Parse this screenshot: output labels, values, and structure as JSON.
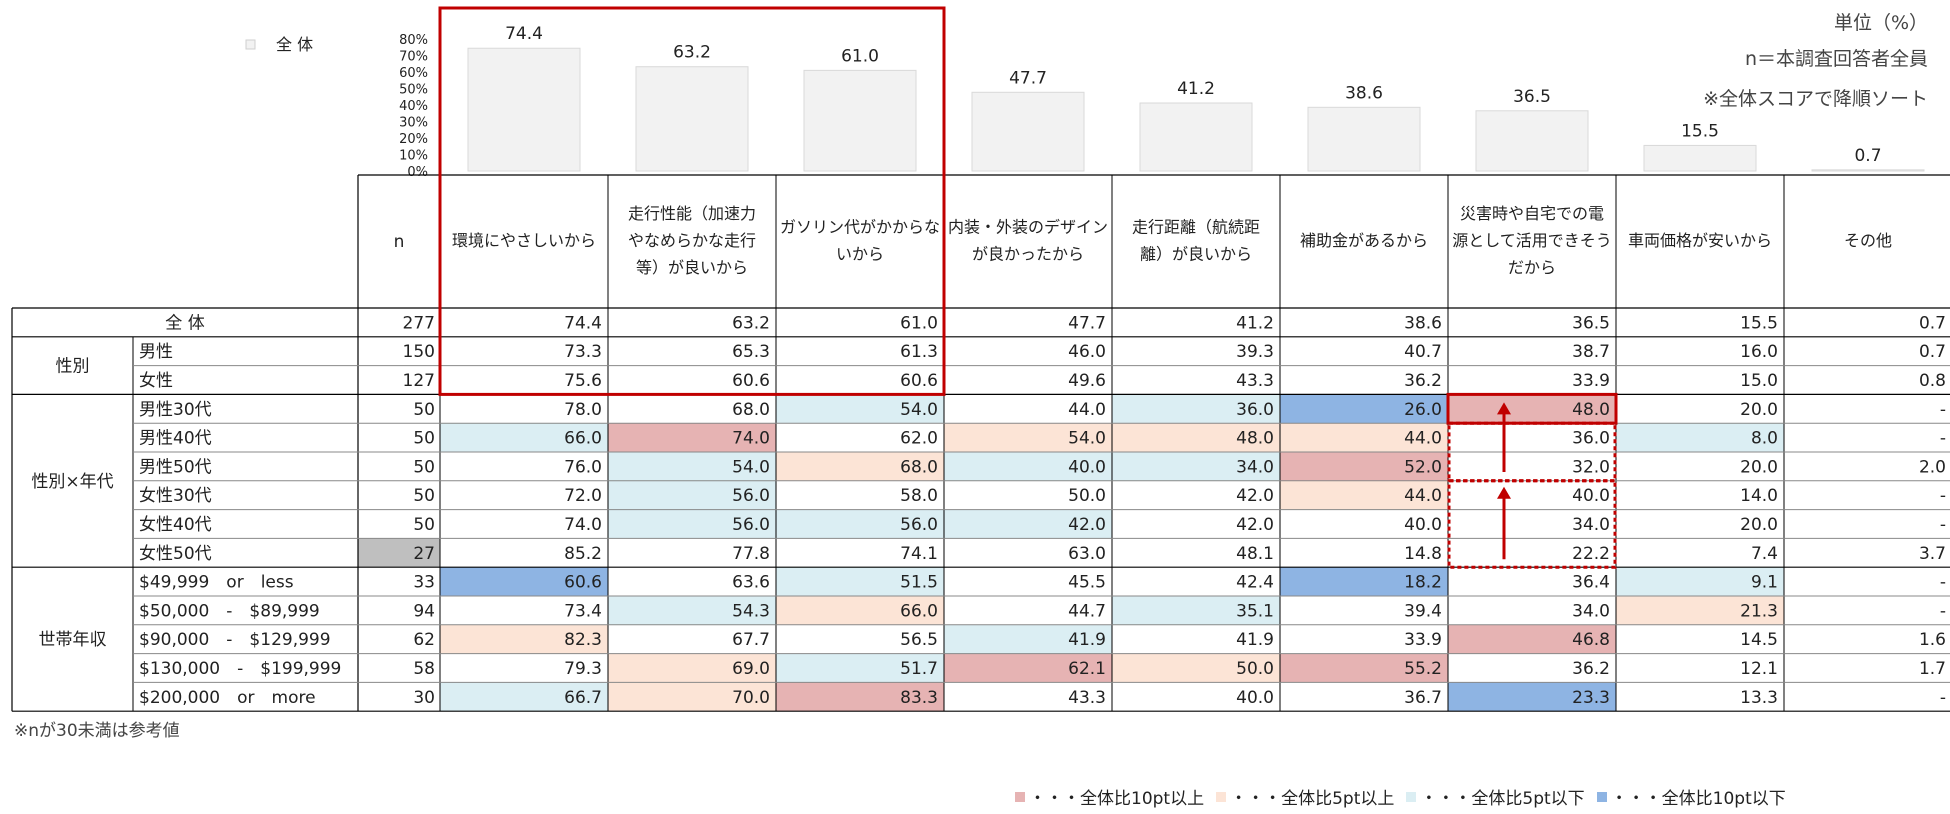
{
  "notes": {
    "unit": "単位（%）",
    "base": "n＝本調査回答者全員",
    "sort": "※全体スコアで降順ソート",
    "small_n": "※nが30未満は参考値"
  },
  "legend": {
    "chart_series": "全 体",
    "items": [
      {
        "color": "#e6b3b3",
        "label": "・・・全体比10pt以上"
      },
      {
        "color": "#fce4d6",
        "label": "・・・全体比5pt以上"
      },
      {
        "color": "#dbeef3",
        "label": "・・・全体比5pt以下"
      },
      {
        "color": "#8eb4e3",
        "label": "・・・全体比10pt以下"
      }
    ]
  },
  "colors": {
    "high10": "#e6b3b3",
    "high5": "#fce4d6",
    "low5": "#dbeef3",
    "low10": "#8eb4e3",
    "smallN": "#bfbfbf",
    "bar": "#f2f2f2",
    "frame": "#c00000"
  },
  "chart_data": {
    "type": "bar",
    "series_name": "全 体",
    "categories": [
      "環境にやさしいから",
      "走行性能（加速力やなめらかな走行等）が良いから",
      "ガソリン代がかからないから",
      "内装・外装のデザインが良かったから",
      "走行距離（航続距離）が良いから",
      "補助金があるから",
      "災害時や自宅での電源として活用できそうだから",
      "車両価格が安いから",
      "その他"
    ],
    "values": [
      74.4,
      63.2,
      61.0,
      47.7,
      41.2,
      38.6,
      36.5,
      15.5,
      0.7
    ],
    "value_labels": [
      "74.4",
      "63.2",
      "61.0",
      "47.7",
      "41.2",
      "38.6",
      "36.5",
      "15.5",
      "0.7"
    ],
    "yticks": [
      "80%",
      "70%",
      "60%",
      "50%",
      "40%",
      "30%",
      "20%",
      "10%",
      "0%"
    ],
    "ylim": [
      0,
      80
    ]
  },
  "table": {
    "n_header": "n",
    "column_headers": [
      [
        "環境にやさしいから"
      ],
      [
        "走行性能（加速力",
        "やなめらかな走行",
        "等）が良いから"
      ],
      [
        "ガソリン代がかからな",
        "いから"
      ],
      [
        "内装・外装のデザイン",
        "が良かったから"
      ],
      [
        "走行距離（航続距",
        "離）が良いから"
      ],
      [
        "補助金があるから"
      ],
      [
        "災害時や自宅での電",
        "源として活用できそう",
        "だから"
      ],
      [
        "車両価格が安いから"
      ],
      [
        "その他"
      ]
    ],
    "groups": [
      {
        "label": "",
        "start": 0,
        "count": 1
      },
      {
        "label": "性別",
        "start": 1,
        "count": 2
      },
      {
        "label": "性別×年代",
        "start": 3,
        "count": 6
      },
      {
        "label": "世帯年収",
        "start": 9,
        "count": 5
      }
    ],
    "rows": [
      {
        "label": "全 体",
        "n": "277",
        "values": [
          "74.4",
          "63.2",
          "61.0",
          "47.7",
          "41.2",
          "38.6",
          "36.5",
          "15.5",
          "0.7"
        ],
        "shade": [
          "",
          "",
          "",
          "",
          "",
          "",
          "",
          "",
          ""
        ]
      },
      {
        "label": "男性",
        "n": "150",
        "values": [
          "73.3",
          "65.3",
          "61.3",
          "46.0",
          "39.3",
          "40.7",
          "38.7",
          "16.0",
          "0.7"
        ],
        "shade": [
          "",
          "",
          "",
          "",
          "",
          "",
          "",
          "",
          ""
        ]
      },
      {
        "label": "女性",
        "n": "127",
        "values": [
          "75.6",
          "60.6",
          "60.6",
          "49.6",
          "43.3",
          "36.2",
          "33.9",
          "15.0",
          "0.8"
        ],
        "shade": [
          "",
          "",
          "",
          "",
          "",
          "",
          "",
          "",
          ""
        ]
      },
      {
        "label": "男性30代",
        "n": "50",
        "values": [
          "78.0",
          "68.0",
          "54.0",
          "44.0",
          "36.0",
          "26.0",
          "48.0",
          "20.0",
          "-"
        ],
        "shade": [
          "",
          "",
          "low5",
          "",
          "low5",
          "low10",
          "high10",
          "",
          ""
        ]
      },
      {
        "label": "男性40代",
        "n": "50",
        "values": [
          "66.0",
          "74.0",
          "62.0",
          "54.0",
          "48.0",
          "44.0",
          "36.0",
          "8.0",
          "-"
        ],
        "shade": [
          "low5",
          "high10",
          "",
          "high5",
          "high5",
          "high5",
          "",
          "low5",
          ""
        ]
      },
      {
        "label": "男性50代",
        "n": "50",
        "values": [
          "76.0",
          "54.0",
          "68.0",
          "40.0",
          "34.0",
          "52.0",
          "32.0",
          "20.0",
          "2.0"
        ],
        "shade": [
          "",
          "low5",
          "high5",
          "low5",
          "low5",
          "high10",
          "",
          "",
          ""
        ]
      },
      {
        "label": "女性30代",
        "n": "50",
        "values": [
          "72.0",
          "56.0",
          "58.0",
          "50.0",
          "42.0",
          "44.0",
          "40.0",
          "14.0",
          "-"
        ],
        "shade": [
          "",
          "low5",
          "",
          "",
          "",
          "high5",
          "",
          "",
          ""
        ]
      },
      {
        "label": "女性40代",
        "n": "50",
        "values": [
          "74.0",
          "56.0",
          "56.0",
          "42.0",
          "42.0",
          "40.0",
          "34.0",
          "20.0",
          "-"
        ],
        "shade": [
          "",
          "low5",
          "low5",
          "low5",
          "",
          "",
          "",
          "",
          ""
        ]
      },
      {
        "label": "女性50代",
        "n": "27",
        "values": [
          "85.2",
          "77.8",
          "74.1",
          "63.0",
          "48.1",
          "14.8",
          "22.2",
          "7.4",
          "3.7"
        ],
        "shade": [
          "",
          "",
          "",
          "",
          "",
          "",
          "",
          "",
          ""
        ],
        "small_n": true
      },
      {
        "label": "$49,999　or　less",
        "n": "33",
        "values": [
          "60.6",
          "63.6",
          "51.5",
          "45.5",
          "42.4",
          "18.2",
          "36.4",
          "9.1",
          "-"
        ],
        "shade": [
          "low10",
          "",
          "low5",
          "",
          "",
          "low10",
          "",
          "low5",
          ""
        ]
      },
      {
        "label": "$50,000　-　$89,999",
        "n": "94",
        "values": [
          "73.4",
          "54.3",
          "66.0",
          "44.7",
          "35.1",
          "39.4",
          "34.0",
          "21.3",
          "-"
        ],
        "shade": [
          "",
          "low5",
          "high5",
          "",
          "low5",
          "",
          "",
          "high5",
          ""
        ]
      },
      {
        "label": "$90,000　-　$129,999",
        "n": "62",
        "values": [
          "82.3",
          "67.7",
          "56.5",
          "41.9",
          "41.9",
          "33.9",
          "46.8",
          "14.5",
          "1.6"
        ],
        "shade": [
          "high5",
          "",
          "",
          "low5",
          "",
          "",
          "high10",
          "",
          ""
        ]
      },
      {
        "label": "$130,000　-　$199,999",
        "n": "58",
        "values": [
          "79.3",
          "69.0",
          "51.7",
          "62.1",
          "50.0",
          "55.2",
          "36.2",
          "12.1",
          "1.7"
        ],
        "shade": [
          "",
          "high5",
          "low5",
          "high10",
          "high5",
          "high10",
          "",
          "",
          ""
        ]
      },
      {
        "label": "$200,000　or　more",
        "n": "30",
        "values": [
          "66.7",
          "70.0",
          "83.3",
          "43.3",
          "40.0",
          "36.7",
          "23.3",
          "13.3",
          "-"
        ],
        "shade": [
          "low5",
          "high5",
          "high10",
          "",
          "",
          "",
          "low10",
          "",
          ""
        ]
      }
    ]
  }
}
